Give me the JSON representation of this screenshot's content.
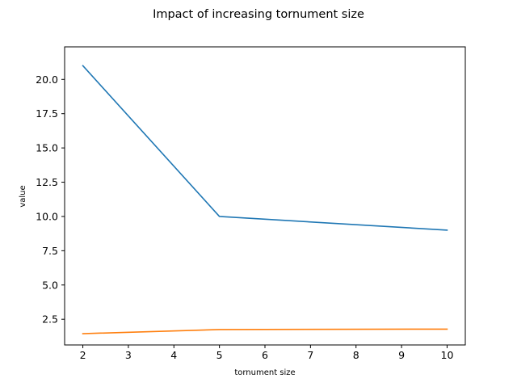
{
  "chart_data": {
    "type": "line",
    "title": "Impact of increasing tornument size",
    "xlabel": "tornument size",
    "ylabel": "value",
    "x": [
      2,
      5,
      10
    ],
    "xlim": [
      1.6,
      10.4
    ],
    "ylim": [
      0.625,
      22.375
    ],
    "xticks": [
      2,
      3,
      4,
      5,
      6,
      7,
      8,
      9,
      10
    ],
    "yticks": [
      2.5,
      5.0,
      7.5,
      10.0,
      12.5,
      15.0,
      17.5,
      20.0
    ],
    "ytick_labels": [
      "2.5",
      "5.0",
      "7.5",
      "10.0",
      "12.5",
      "15.0",
      "17.5",
      "20.0"
    ],
    "grid": false,
    "legend": "none",
    "series": [
      {
        "values": [
          21.0,
          10.0,
          9.0
        ],
        "color": "#1f77b4"
      },
      {
        "values": [
          1.45,
          1.75,
          1.78
        ],
        "color": "#ff7f0e"
      }
    ]
  }
}
